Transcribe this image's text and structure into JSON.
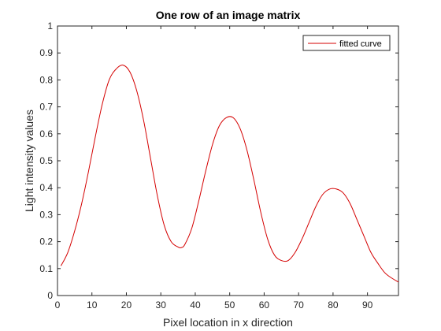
{
  "chart_data": {
    "type": "line",
    "title": "One row of an image matrix",
    "xlabel": "Pixel location in x direction",
    "ylabel": "Light intensity values",
    "xlim": [
      0,
      99
    ],
    "ylim": [
      0,
      1
    ],
    "xticks": [
      0,
      10,
      20,
      30,
      40,
      50,
      60,
      70,
      80,
      90
    ],
    "yticks": [
      0,
      0.1,
      0.2,
      0.3,
      0.4,
      0.5,
      0.6,
      0.7,
      0.8,
      0.9,
      1
    ],
    "grid": false,
    "legend_position": "top-right",
    "series": [
      {
        "name": "fitted curve",
        "color": "#d40000",
        "x": [
          1,
          3,
          5,
          7,
          9,
          11,
          13,
          15,
          17,
          19,
          21,
          23,
          25,
          27,
          29,
          31,
          33,
          35,
          36,
          37,
          39,
          41,
          43,
          45,
          47,
          49,
          51,
          53,
          55,
          57,
          59,
          61,
          63,
          65,
          67,
          69,
          71,
          73,
          75,
          77,
          79,
          81,
          83,
          85,
          87,
          89,
          91,
          93,
          95,
          97,
          99
        ],
        "y": [
          0.11,
          0.16,
          0.24,
          0.34,
          0.46,
          0.59,
          0.71,
          0.8,
          0.84,
          0.855,
          0.83,
          0.76,
          0.65,
          0.51,
          0.37,
          0.26,
          0.2,
          0.18,
          0.178,
          0.19,
          0.25,
          0.35,
          0.46,
          0.56,
          0.63,
          0.66,
          0.66,
          0.62,
          0.54,
          0.43,
          0.31,
          0.21,
          0.15,
          0.13,
          0.13,
          0.16,
          0.21,
          0.27,
          0.33,
          0.375,
          0.395,
          0.395,
          0.38,
          0.34,
          0.28,
          0.22,
          0.16,
          0.12,
          0.085,
          0.065,
          0.05
        ]
      }
    ]
  }
}
